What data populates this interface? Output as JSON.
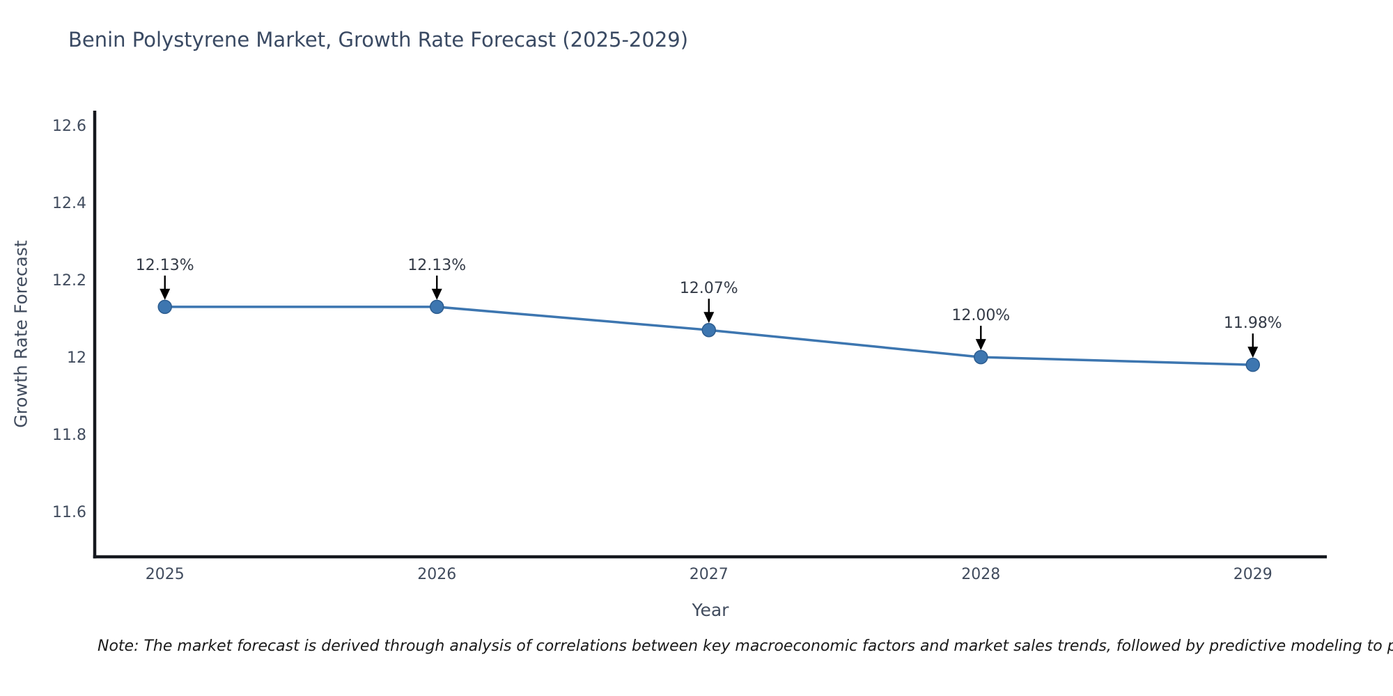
{
  "chart_data": {
    "type": "line",
    "title": "Benin Polystyrene Market, Growth Rate Forecast (2025-2029)",
    "xlabel": "Year",
    "ylabel": "Growth Rate Forecast",
    "x": [
      2025,
      2026,
      2027,
      2028,
      2029
    ],
    "series": [
      {
        "name": "Growth Rate Forecast",
        "values": [
          12.13,
          12.13,
          12.07,
          12.0,
          11.98
        ]
      }
    ],
    "point_labels": [
      "12.13%",
      "12.13%",
      "12.07%",
      "12.00%",
      "11.98%"
    ],
    "xticks": [
      2025,
      2026,
      2027,
      2028,
      2029
    ],
    "yticks": [
      11.6,
      11.8,
      12,
      12.2,
      12.4,
      12.6
    ],
    "xlim": [
      2024.742,
      2029.272
    ],
    "ylim": [
      11.483,
      12.638
    ],
    "grid": false,
    "legend": null,
    "colors": {
      "line": "#3d76b0",
      "marker": "#3d76b0",
      "marker_edge": "#2c5c8f",
      "axis": "#15181e",
      "arrow": "#000000",
      "background": "#ffffff"
    }
  },
  "note": "Note: The market forecast is derived through analysis of correlations between key macroeconomic factors and market sales trends, followed by predictive modeling to project future sal"
}
